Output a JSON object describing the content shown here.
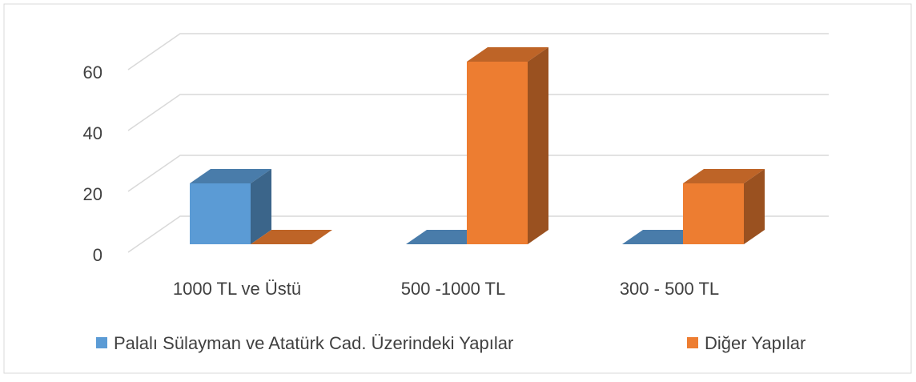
{
  "chart_data": {
    "type": "bar3d",
    "categories": [
      "1000 TL ve Üstü",
      "500 -1000 TL",
      "300 - 500 TL"
    ],
    "series": [
      {
        "name": "Palalı Sülayman ve Atatürk Cad. Üzerindeki Yapılar",
        "color": "#5b9bd5",
        "values": [
          20,
          0,
          0
        ]
      },
      {
        "name": "Diğer Yapılar",
        "color": "#ed7d31",
        "values": [
          0,
          60,
          20
        ]
      }
    ],
    "ylim": [
      0,
      60
    ],
    "yticks": [
      0,
      20,
      40,
      60
    ],
    "grid": true,
    "legend": "bottom"
  }
}
